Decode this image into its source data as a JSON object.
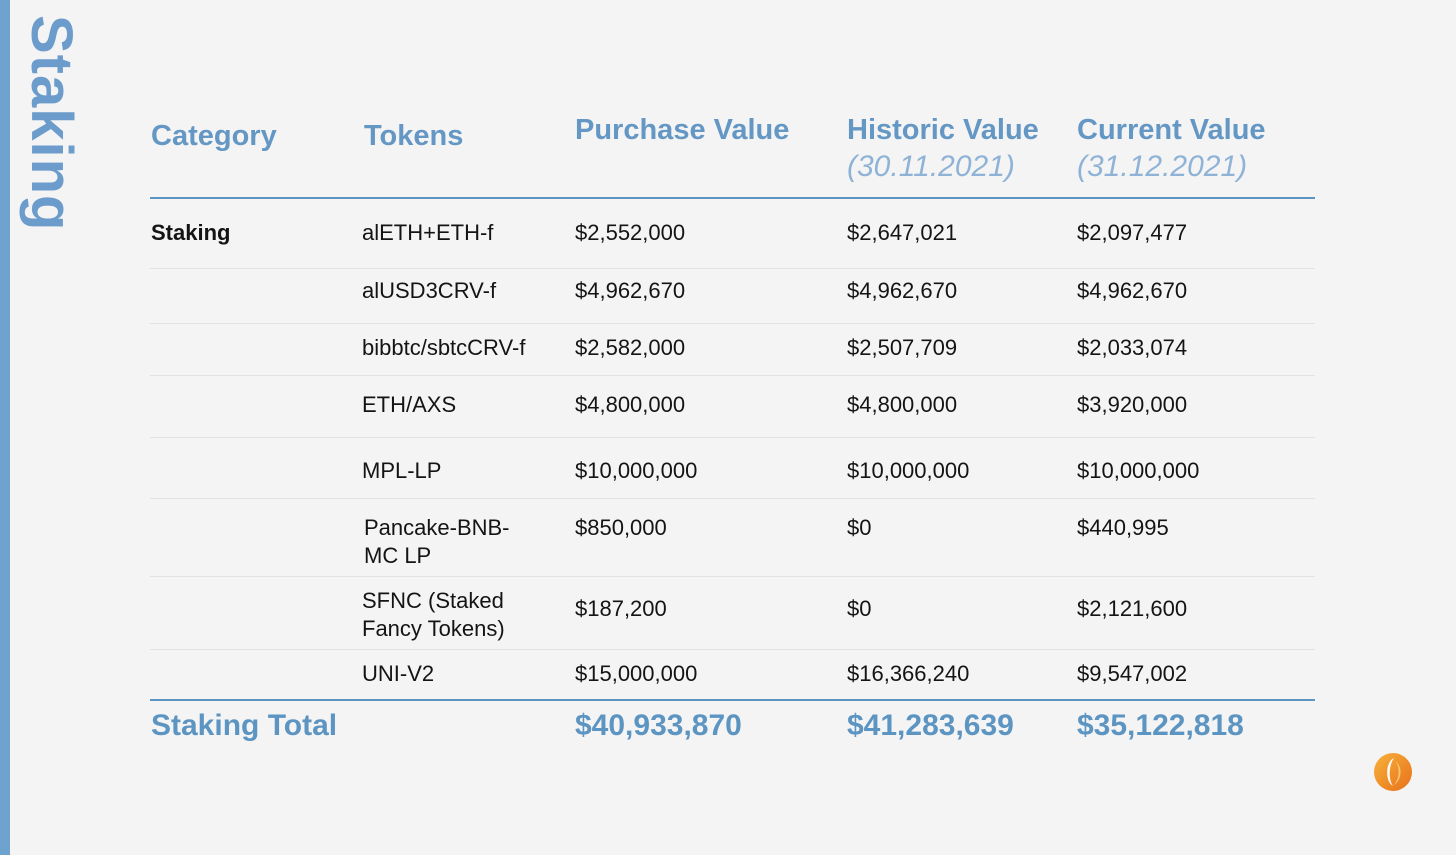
{
  "page_title": "Staking",
  "header": {
    "category": "Category",
    "tokens": "Tokens",
    "purchase_value": "Purchase Value",
    "historic_value": "Historic Value",
    "historic_date": "(30.11.2021)",
    "current_value": "Current Value",
    "current_date": "(31.12.2021)"
  },
  "rows": [
    {
      "category": "Staking",
      "token": "alETH+ETH-f",
      "purchase": "$2,552,000",
      "historic": "$2,647,021",
      "current": "$2,097,477"
    },
    {
      "category": "",
      "token": "alUSD3CRV-f",
      "purchase": "$4,962,670",
      "historic": "$4,962,670",
      "current": "$4,962,670"
    },
    {
      "category": "",
      "token": "bibbtc/sbtcCRV-f",
      "purchase": "$2,582,000",
      "historic": "$2,507,709",
      "current": "$2,033,074"
    },
    {
      "category": "",
      "token": "ETH/AXS",
      "purchase": "$4,800,000",
      "historic": "$4,800,000",
      "current": "$3,920,000"
    },
    {
      "category": "",
      "token": "MPL-LP",
      "purchase": "$10,000,000",
      "historic": "$10,000,000",
      "current": "$10,000,000"
    },
    {
      "category": "",
      "token": "Pancake-BNB-MC LP",
      "purchase": "$850,000",
      "historic": "$0",
      "current": "$440,995"
    },
    {
      "category": "",
      "token": "SFNC (Staked Fancy Tokens)",
      "purchase": "$187,200",
      "historic": "$0",
      "current": "$2,121,600"
    },
    {
      "category": "",
      "token": "UNI-V2",
      "purchase": "$15,000,000",
      "historic": "$16,366,240",
      "current": "$9,547,002"
    }
  ],
  "total": {
    "label": "Staking Total",
    "purchase": "$40,933,870",
    "historic": "$41,283,639",
    "current": "$35,122,818"
  },
  "colors": {
    "accent": "#6497c4",
    "accent_light": "#8fb3d6",
    "background": "#f4f4f4",
    "logo_orange": "#f28c28"
  },
  "icons": {
    "logo": "orange-swirl-logo-icon"
  }
}
